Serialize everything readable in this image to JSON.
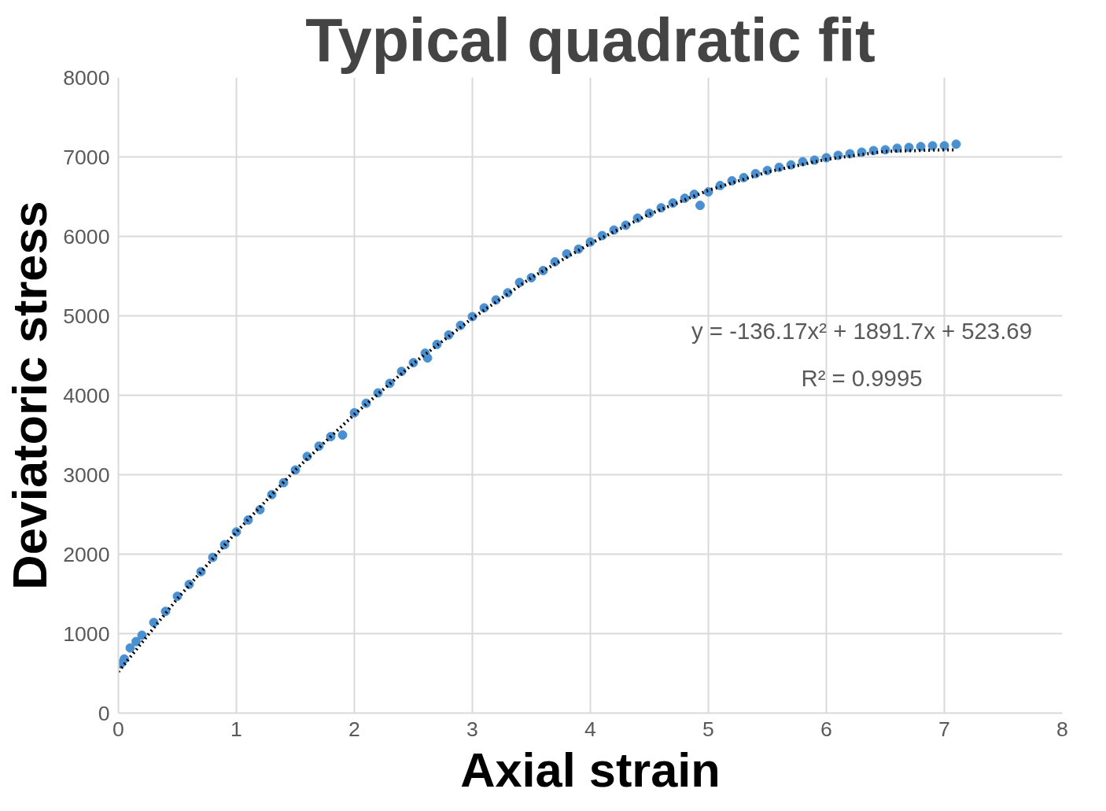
{
  "chart_data": {
    "type": "scatter",
    "title": "Typical quadratic fit",
    "xlabel": "Axial strain",
    "ylabel": "Deviatoric stress",
    "annotations": [
      "y = -136.17x² + 1891.7x + 523.69",
      "R² = 0.9995"
    ],
    "xlim": [
      0,
      8
    ],
    "ylim": [
      0,
      8000
    ],
    "xticks": [
      0,
      1,
      2,
      3,
      4,
      5,
      6,
      7,
      8
    ],
    "yticks": [
      0,
      1000,
      2000,
      3000,
      4000,
      5000,
      6000,
      7000,
      8000
    ],
    "grid": true,
    "series": [
      {
        "color": "#4a90d0",
        "marker": "circle",
        "x": [
          0.02,
          0.05,
          0.1,
          0.15,
          0.2,
          0.3,
          0.4,
          0.5,
          0.6,
          0.7,
          0.8,
          0.9,
          1.0,
          1.1,
          1.2,
          1.3,
          1.4,
          1.5,
          1.6,
          1.7,
          1.8,
          1.9,
          2.0,
          2.1,
          2.2,
          2.3,
          2.4,
          2.5,
          2.6,
          2.62,
          2.7,
          2.8,
          2.9,
          3.0,
          3.1,
          3.2,
          3.3,
          3.4,
          3.5,
          3.6,
          3.7,
          3.8,
          3.9,
          4.0,
          4.1,
          4.2,
          4.3,
          4.4,
          4.5,
          4.6,
          4.7,
          4.8,
          4.88,
          4.93,
          5.0,
          5.1,
          5.2,
          5.3,
          5.4,
          5.5,
          5.6,
          5.7,
          5.8,
          5.9,
          6.0,
          6.1,
          6.2,
          6.3,
          6.4,
          6.5,
          6.6,
          6.7,
          6.8,
          6.9,
          7.0,
          7.1
        ],
        "values": [
          620,
          680,
          820,
          900,
          980,
          1140,
          1280,
          1470,
          1620,
          1780,
          1960,
          2120,
          2280,
          2430,
          2560,
          2750,
          2900,
          3060,
          3230,
          3360,
          3480,
          3500,
          3780,
          3900,
          4030,
          4150,
          4300,
          4410,
          4530,
          4470,
          4640,
          4760,
          4880,
          4990,
          5100,
          5200,
          5290,
          5420,
          5480,
          5570,
          5680,
          5780,
          5840,
          5930,
          6010,
          6080,
          6140,
          6230,
          6290,
          6360,
          6420,
          6480,
          6530,
          6390,
          6560,
          6640,
          6700,
          6740,
          6790,
          6830,
          6870,
          6900,
          6940,
          6960,
          6990,
          7020,
          7040,
          7060,
          7080,
          7090,
          7110,
          7120,
          7130,
          7140,
          7140,
          7160
        ]
      },
      {
        "type": "line",
        "color": "#000000",
        "line_style": "dotted",
        "x": [
          0,
          0.5,
          1,
          1.5,
          2,
          2.5,
          3,
          3.5,
          4,
          4.5,
          5,
          5.5,
          6,
          6.5,
          7,
          7.1
        ],
        "values": [
          520,
          1440,
          2280,
          3060,
          3760,
          4400,
          4970,
          5480,
          5910,
          6280,
          6580,
          6810,
          6970,
          7070,
          7090,
          7090
        ]
      }
    ]
  }
}
